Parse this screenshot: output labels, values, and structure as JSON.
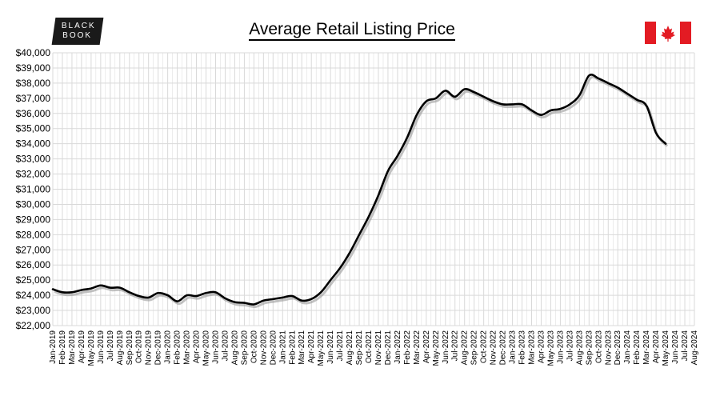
{
  "header": {
    "title": "Average Retail Listing Price",
    "logo_line1": "BLACK",
    "logo_line2": "BOOK",
    "flag_icon": "canada-flag-icon"
  },
  "colors": {
    "line": "#000000",
    "grid": "#d9d9d9",
    "flag_red": "#e31b23",
    "logo_bg": "#1a1a1a"
  },
  "chart_data": {
    "type": "line",
    "title": "Average Retail Listing Price",
    "xlabel": "",
    "ylabel": "",
    "ylim": [
      22000,
      40000
    ],
    "y_step": 1000,
    "y_tick_labels": [
      "$22,000",
      "$23,000",
      "$24,000",
      "$25,000",
      "$26,000",
      "$27,000",
      "$28,000",
      "$29,000",
      "$30,000",
      "$31,000",
      "$32,000",
      "$33,000",
      "$34,000",
      "$35,000",
      "$36,000",
      "$37,000",
      "$38,000",
      "$39,000",
      "$40,000"
    ],
    "x_tick_labels": [
      "Jan-2019",
      "Feb-2019",
      "Mar-2019",
      "Apr-2019",
      "May-2019",
      "Jun-2019",
      "Jul-2019",
      "Aug-2019",
      "Sep-2019",
      "Oct-2019",
      "Nov-2019",
      "Dec-2019",
      "Jan-2020",
      "Feb-2020",
      "Mar-2020",
      "Apr-2020",
      "May-2020",
      "Jun-2020",
      "Jul-2020",
      "Aug-2020",
      "Sep-2020",
      "Oct-2020",
      "Nov-2020",
      "Dec-2020",
      "Jan-2021",
      "Feb-2021",
      "Mar-2021",
      "Apr-2021",
      "May-2021",
      "Jun-2021",
      "Jul-2021",
      "Aug-2021",
      "Sep-2021",
      "Oct-2021",
      "Nov-2021",
      "Dec-2021",
      "Jan-2022",
      "Feb-2022",
      "Mar-2022",
      "Apr-2022",
      "May-2022",
      "Jun-2022",
      "Jul-2022",
      "Aug-2022",
      "Sep-2022",
      "Oct-2022",
      "Nov-2022",
      "Dec-2022",
      "Jan-2023",
      "Feb-2023",
      "Mar-2023",
      "Apr-2023",
      "May-2023",
      "Jun-2023",
      "Jul-2023",
      "Aug-2023",
      "Sep-2023",
      "Oct-2023",
      "Nov-2023",
      "Dec-2023",
      "Jan-2024",
      "Feb-2024",
      "Mar-2024",
      "Apr-2024",
      "May-2024",
      "Jun-2024",
      "Jul-2024",
      "Aug-2024"
    ],
    "grid": true,
    "legend": "none",
    "series": [
      {
        "x": [
          "Jan-2019",
          "Feb-2019",
          "Mar-2019",
          "Apr-2019",
          "May-2019",
          "Jun-2019",
          "Jul-2019",
          "Aug-2019",
          "Sep-2019",
          "Oct-2019",
          "Nov-2019",
          "Dec-2019",
          "Jan-2020",
          "Feb-2020",
          "Mar-2020",
          "Apr-2020",
          "May-2020",
          "Jun-2020",
          "Jul-2020",
          "Aug-2020",
          "Sep-2020",
          "Oct-2020",
          "Nov-2020",
          "Dec-2020",
          "Jan-2021",
          "Feb-2021",
          "Mar-2021",
          "Apr-2021",
          "May-2021",
          "Jun-2021",
          "Jul-2021",
          "Aug-2021",
          "Sep-2021",
          "Oct-2021",
          "Nov-2021",
          "Dec-2021",
          "Jan-2022",
          "Feb-2022",
          "Mar-2022",
          "Apr-2022",
          "May-2022",
          "Jun-2022",
          "Jul-2022",
          "Aug-2022",
          "Sep-2022",
          "Oct-2022",
          "Nov-2022",
          "Dec-2022",
          "Jan-2023",
          "Feb-2023",
          "Mar-2023",
          "Apr-2023",
          "May-2023",
          "Jun-2023",
          "Jul-2023",
          "Aug-2023",
          "Sep-2023",
          "Oct-2023",
          "Nov-2023",
          "Dec-2023",
          "Jan-2024",
          "Feb-2024",
          "Mar-2024",
          "Apr-2024",
          "May-2024"
        ],
        "values": [
          24400,
          24200,
          24200,
          24350,
          24450,
          24650,
          24500,
          24500,
          24200,
          23950,
          23850,
          24150,
          24000,
          23600,
          24000,
          23950,
          24150,
          24200,
          23800,
          23550,
          23500,
          23400,
          23650,
          23750,
          23850,
          23950,
          23650,
          23750,
          24200,
          25000,
          25800,
          26800,
          28000,
          29200,
          30600,
          32200,
          33200,
          34400,
          35900,
          36800,
          37000,
          37500,
          37100,
          37600,
          37400,
          37100,
          36800,
          36600,
          36600,
          36600,
          36200,
          35900,
          36200,
          36300,
          36600,
          37200,
          38500,
          38300,
          38000,
          37700,
          37300,
          36900,
          36500,
          34700,
          34000
        ]
      }
    ]
  }
}
